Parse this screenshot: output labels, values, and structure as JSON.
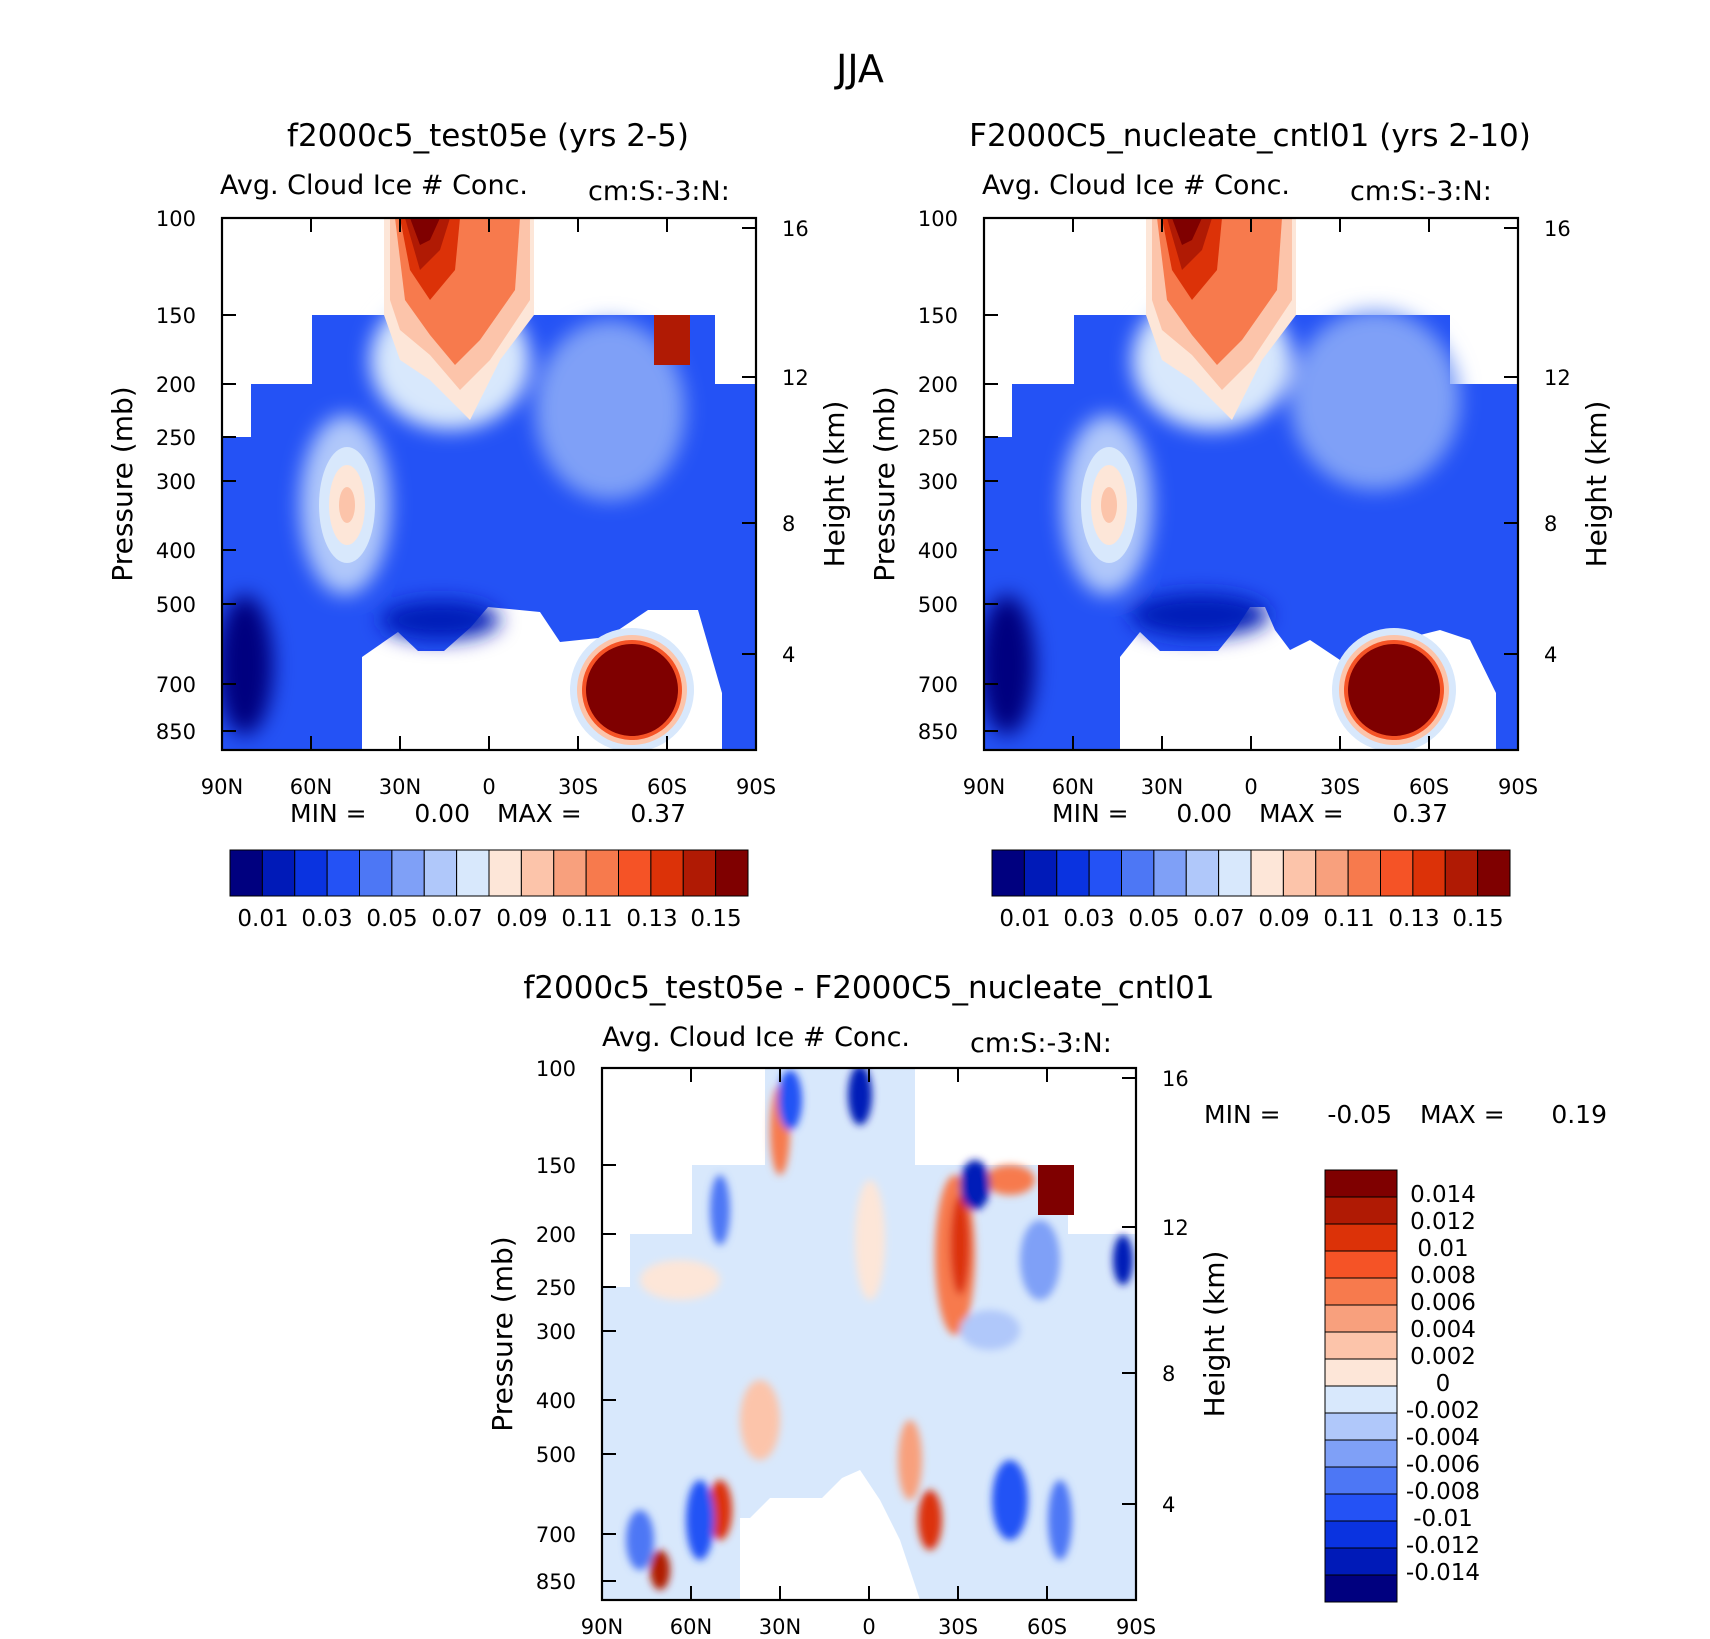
{
  "page_title": "JJA",
  "colors": {
    "seq": [
      "#00007f",
      "#001ab8",
      "#0a33e0",
      "#2452f5",
      "#4d77f5",
      "#7fa0f7",
      "#b0c8fa",
      "#d8e8fc",
      "#fde6d8",
      "#fcc4aa",
      "#f8a07d",
      "#f77a4d",
      "#f55326",
      "#dc3208",
      "#b01a04",
      "#7f0000"
    ],
    "diff": [
      "#00007f",
      "#001ab8",
      "#0a33e0",
      "#2452f5",
      "#4d77f5",
      "#7fa0f7",
      "#b0c8fa",
      "#d8e8fc",
      "#fde6d8",
      "#fcc4aa",
      "#f8a07d",
      "#f77a4d",
      "#f55326",
      "#dc3208",
      "#b01a04",
      "#7f0000"
    ]
  },
  "chart_data": [
    {
      "type": "heatmap",
      "title": "f2000c5_test05e (yrs 2-5)",
      "left_label": "Avg. Cloud Ice # Conc.",
      "right_label": "cm:S:-3:N:",
      "xlabel": "",
      "ylabel": "Pressure (mb)",
      "y2label": "Height (km)",
      "x_ticks": [
        "90N",
        "60N",
        "30N",
        "0",
        "30S",
        "60S",
        "90S"
      ],
      "y_ticks": [
        "100",
        "150",
        "200",
        "250",
        "300",
        "400",
        "500",
        "700",
        "850"
      ],
      "y2_ticks": [
        "16",
        "12",
        "8",
        "4"
      ],
      "stats": {
        "min_label": "MIN =",
        "min": "0.00",
        "max_label": "MAX =",
        "max": "0.37"
      },
      "colorbar_labels": [
        "0.01",
        "0.03",
        "0.05",
        "0.07",
        "0.09",
        "0.11",
        "0.13",
        "0.15"
      ]
    },
    {
      "type": "heatmap",
      "title": "F2000C5_nucleate_cntl01 (yrs 2-10)",
      "left_label": "Avg. Cloud Ice # Conc.",
      "right_label": "cm:S:-3:N:",
      "xlabel": "",
      "ylabel": "Pressure (mb)",
      "y2label": "Height (km)",
      "x_ticks": [
        "90N",
        "60N",
        "30N",
        "0",
        "30S",
        "60S",
        "90S"
      ],
      "y_ticks": [
        "100",
        "150",
        "200",
        "250",
        "300",
        "400",
        "500",
        "700",
        "850"
      ],
      "y2_ticks": [
        "16",
        "12",
        "8",
        "4"
      ],
      "stats": {
        "min_label": "MIN =",
        "min": "0.00",
        "max_label": "MAX =",
        "max": "0.37"
      },
      "colorbar_labels": [
        "0.01",
        "0.03",
        "0.05",
        "0.07",
        "0.09",
        "0.11",
        "0.13",
        "0.15"
      ]
    },
    {
      "type": "heatmap",
      "title": "f2000c5_test05e - F2000C5_nucleate_cntl01",
      "left_label": "Avg. Cloud Ice # Conc.",
      "right_label": "cm:S:-3:N:",
      "xlabel": "",
      "ylabel": "Pressure (mb)",
      "y2label": "Height (km)",
      "x_ticks": [
        "90N",
        "60N",
        "30N",
        "0",
        "30S",
        "60S",
        "90S"
      ],
      "y_ticks": [
        "100",
        "150",
        "200",
        "250",
        "300",
        "400",
        "500",
        "700",
        "850"
      ],
      "y2_ticks": [
        "16",
        "12",
        "8",
        "4"
      ],
      "stats": {
        "min_label": "MIN =",
        "min": "-0.05",
        "max_label": "MAX =",
        "max": "0.19"
      },
      "colorbar_labels": [
        "0.014",
        "0.012",
        "0.01",
        "0.008",
        "0.006",
        "0.004",
        "0.002",
        "0",
        "-0.002",
        "-0.004",
        "-0.006",
        "-0.008",
        "-0.01",
        "-0.012",
        "-0.014"
      ]
    }
  ]
}
